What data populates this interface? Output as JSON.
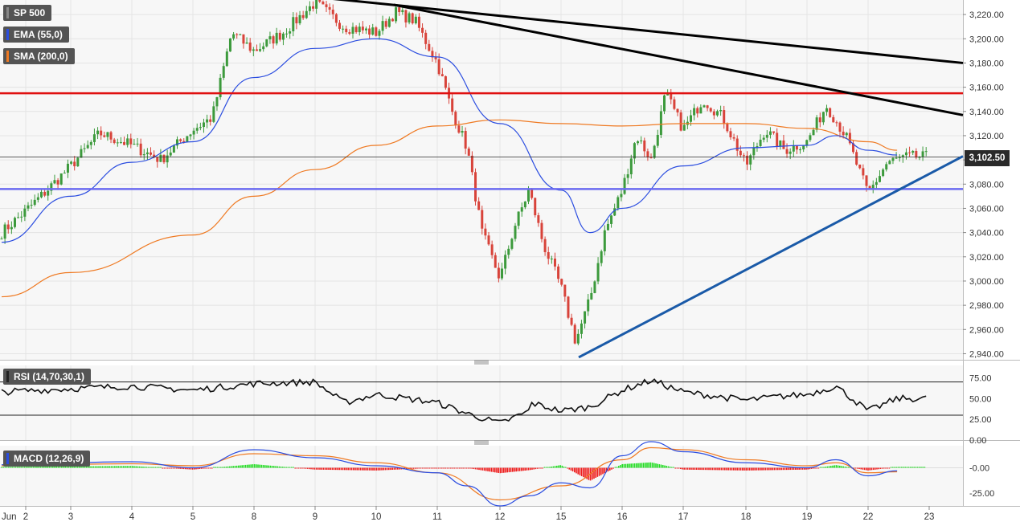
{
  "legend": {
    "symbol": "SP 500",
    "ema": "EMA (55,0)",
    "sma": "SMA (200,0)",
    "rsi": "RSI (14,70,30,1)",
    "macd": "MACD (12,26,9)"
  },
  "last_price_label": "3,102.50",
  "colors": {
    "bull": "#3c9a3c",
    "bear": "#d8433a",
    "ema": "#2b4de0",
    "sma": "#ef7a23",
    "resistance": "#e01010",
    "support": "#6a6af0",
    "trendline_up": "#1a5aa8",
    "trendline_down": "#000000",
    "macd_line": "#2b4de0",
    "signal_line": "#ef7a23",
    "hist_pos": "#22dd22",
    "hist_neg": "#ee1a1a"
  },
  "chart_data": [
    {
      "type": "candlestick",
      "title": "SP 500",
      "x_tick_labels": [
        "Jun",
        "2",
        "3",
        "4",
        "5",
        "8",
        "9",
        "10",
        "11",
        "12",
        "15",
        "16",
        "17",
        "18",
        "19",
        "22",
        "23"
      ],
      "y_tick_labels": [
        "3,220.00",
        "3,200.00",
        "3,180.00",
        "3,160.00",
        "3,140.00",
        "3,120.00",
        "3,100.00",
        "3,080.00",
        "3,060.00",
        "3,040.00",
        "3,020.00",
        "3,000.00",
        "2,980.00",
        "2,960.00",
        "2,940.00"
      ],
      "ylim": [
        2935,
        3232
      ],
      "last_price": 3102.5,
      "horizontal_lines": [
        {
          "name": "resistance",
          "y": 3155
        },
        {
          "name": "support",
          "y": 3076
        },
        {
          "name": "last",
          "y": 3102.5
        }
      ],
      "trendlines": [
        {
          "name": "upper-down-1",
          "from": {
            "x": "Jun 9",
            "y": 3233
          },
          "to": {
            "x": "Jun 23",
            "y": 3180
          }
        },
        {
          "name": "upper-down-2",
          "from": {
            "x": "Jun 10",
            "y": 3228
          },
          "to": {
            "x": "Jun 23",
            "y": 3137
          }
        },
        {
          "name": "rising-support",
          "from": {
            "x": "Jun 15",
            "y": 2937
          },
          "to": {
            "x": "Jun 23",
            "y": 3103
          }
        }
      ],
      "anchors": [
        {
          "x": "Jun 1",
          "y": 3040
        },
        {
          "x": "Jun 2",
          "y": 3058
        },
        {
          "x": "Jun 2",
          "y": 3075
        },
        {
          "x": "Jun 3",
          "y": 3095
        },
        {
          "x": "Jun 3",
          "y": 3122
        },
        {
          "x": "Jun 4",
          "y": 3112
        },
        {
          "x": "Jun 4",
          "y": 3100
        },
        {
          "x": "Jun 5",
          "y": 3125
        },
        {
          "x": "Jun 5",
          "y": 3135
        },
        {
          "x": "Jun 5",
          "y": 3205
        },
        {
          "x": "Jun 8",
          "y": 3190
        },
        {
          "x": "Jun 8",
          "y": 3205
        },
        {
          "x": "Jun 9",
          "y": 3230
        },
        {
          "x": "Jun 9",
          "y": 3210
        },
        {
          "x": "Jun 10",
          "y": 3205
        },
        {
          "x": "Jun 10",
          "y": 3222
        },
        {
          "x": "Jun 10",
          "y": 3215
        },
        {
          "x": "Jun 11",
          "y": 3180
        },
        {
          "x": "Jun 11",
          "y": 3140
        },
        {
          "x": "Jun 11",
          "y": 3110
        },
        {
          "x": "Jun 11",
          "y": 3040
        },
        {
          "x": "Jun 12",
          "y": 3002
        },
        {
          "x": "Jun 12",
          "y": 3045
        },
        {
          "x": "Jun 12",
          "y": 3075
        },
        {
          "x": "Jun 12",
          "y": 3030
        },
        {
          "x": "Jun 15",
          "y": 2995
        },
        {
          "x": "Jun 15",
          "y": 2950
        },
        {
          "x": "Jun 15",
          "y": 2985
        },
        {
          "x": "Jun 15",
          "y": 3040
        },
        {
          "x": "Jun 16",
          "y": 3075
        },
        {
          "x": "Jun 16",
          "y": 3120
        },
        {
          "x": "Jun 16",
          "y": 3100
        },
        {
          "x": "Jun 16",
          "y": 3155
        },
        {
          "x": "Jun 17",
          "y": 3125
        },
        {
          "x": "Jun 17",
          "y": 3150
        },
        {
          "x": "Jun 17",
          "y": 3135
        },
        {
          "x": "Jun 18",
          "y": 3095
        },
        {
          "x": "Jun 18",
          "y": 3125
        },
        {
          "x": "Jun 18",
          "y": 3108
        },
        {
          "x": "Jun 19",
          "y": 3115
        },
        {
          "x": "Jun 19",
          "y": 3145
        },
        {
          "x": "Jun 19",
          "y": 3120
        },
        {
          "x": "Jun 22",
          "y": 3072
        },
        {
          "x": "Jun 22",
          "y": 3098
        },
        {
          "x": "Jun 22",
          "y": 3102.5
        }
      ],
      "ema_55": [
        {
          "x": "Jun 1",
          "y": 3032
        },
        {
          "x": "Jun 3",
          "y": 3070
        },
        {
          "x": "Jun 4",
          "y": 3098
        },
        {
          "x": "Jun 5",
          "y": 3115
        },
        {
          "x": "Jun 8",
          "y": 3168
        },
        {
          "x": "Jun 9",
          "y": 3192
        },
        {
          "x": "Jun 10",
          "y": 3200
        },
        {
          "x": "Jun 11",
          "y": 3185
        },
        {
          "x": "Jun 12",
          "y": 3130
        },
        {
          "x": "Jun 15",
          "y": 3075
        },
        {
          "x": "Jun 15",
          "y": 3040
        },
        {
          "x": "Jun 16",
          "y": 3060
        },
        {
          "x": "Jun 17",
          "y": 3095
        },
        {
          "x": "Jun 18",
          "y": 3110
        },
        {
          "x": "Jun 19",
          "y": 3112
        },
        {
          "x": "Jun 19",
          "y": 3120
        },
        {
          "x": "Jun 22",
          "y": 3108
        },
        {
          "x": "Jun 22",
          "y": 3104
        }
      ],
      "sma_200": [
        {
          "x": "Jun 1",
          "y": 2987
        },
        {
          "x": "Jun 3",
          "y": 3007
        },
        {
          "x": "Jun 5",
          "y": 3038
        },
        {
          "x": "Jun 8",
          "y": 3070
        },
        {
          "x": "Jun 9",
          "y": 3092
        },
        {
          "x": "Jun 10",
          "y": 3112
        },
        {
          "x": "Jun 11",
          "y": 3128
        },
        {
          "x": "Jun 12",
          "y": 3133
        },
        {
          "x": "Jun 15",
          "y": 3130
        },
        {
          "x": "Jun 16",
          "y": 3128
        },
        {
          "x": "Jun 17",
          "y": 3130
        },
        {
          "x": "Jun 18",
          "y": 3130
        },
        {
          "x": "Jun 19",
          "y": 3126
        },
        {
          "x": "Jun 22",
          "y": 3115
        },
        {
          "x": "Jun 22",
          "y": 3108
        }
      ]
    },
    {
      "type": "line",
      "title": "RSI (14,70,30,1)",
      "y_tick_labels": [
        "75.00",
        "50.00",
        "25.00",
        "0.00"
      ],
      "ylim": [
        0,
        90
      ],
      "levels": [
        70,
        30
      ],
      "anchors": [
        {
          "x": "Jun 1",
          "y": 58
        },
        {
          "x": "Jun 3",
          "y": 62
        },
        {
          "x": "Jun 4",
          "y": 65
        },
        {
          "x": "Jun 5",
          "y": 60
        },
        {
          "x": "Jun 8",
          "y": 68
        },
        {
          "x": "Jun 9",
          "y": 70
        },
        {
          "x": "Jun 9",
          "y": 45
        },
        {
          "x": "Jun 10",
          "y": 55
        },
        {
          "x": "Jun 11",
          "y": 45
        },
        {
          "x": "Jun 11",
          "y": 32
        },
        {
          "x": "Jun 12",
          "y": 20
        },
        {
          "x": "Jun 12",
          "y": 35
        },
        {
          "x": "Jun 13",
          "y": 45
        },
        {
          "x": "Jun 15",
          "y": 35
        },
        {
          "x": "Jun 15",
          "y": 40
        },
        {
          "x": "Jun 16",
          "y": 60
        },
        {
          "x": "Jun 16",
          "y": 72
        },
        {
          "x": "Jun 17",
          "y": 58
        },
        {
          "x": "Jun 18",
          "y": 48
        },
        {
          "x": "Jun 18",
          "y": 52
        },
        {
          "x": "Jun 19",
          "y": 55
        },
        {
          "x": "Jun 19",
          "y": 65
        },
        {
          "x": "Jun 22",
          "y": 35
        },
        {
          "x": "Jun 22",
          "y": 50
        }
      ]
    },
    {
      "type": "line",
      "title": "MACD (12,26,9)",
      "y_tick_labels": [
        "-0.00",
        "-25.00"
      ],
      "ylim": [
        -38,
        22
      ],
      "macd_anchors": [
        {
          "x": "Jun 1",
          "y": 3
        },
        {
          "x": "Jun 4",
          "y": 6
        },
        {
          "x": "Jun 5",
          "y": 0
        },
        {
          "x": "Jun 8",
          "y": 18
        },
        {
          "x": "Jun 9",
          "y": 10
        },
        {
          "x": "Jun 10",
          "y": 2
        },
        {
          "x": "Jun 11",
          "y": -5
        },
        {
          "x": "Jun 11",
          "y": -18
        },
        {
          "x": "Jun 12",
          "y": -38
        },
        {
          "x": "Jun 12",
          "y": -28
        },
        {
          "x": "Jun 15",
          "y": -15
        },
        {
          "x": "Jun 15",
          "y": -20
        },
        {
          "x": "Jun 16",
          "y": 12
        },
        {
          "x": "Jun 16",
          "y": 26
        },
        {
          "x": "Jun 17",
          "y": 16
        },
        {
          "x": "Jun 18",
          "y": 5
        },
        {
          "x": "Jun 19",
          "y": 0
        },
        {
          "x": "Jun 19",
          "y": 8
        },
        {
          "x": "Jun 22",
          "y": -8
        },
        {
          "x": "Jun 22",
          "y": -3
        }
      ],
      "signal_anchors": [
        {
          "x": "Jun 1",
          "y": 2
        },
        {
          "x": "Jun 4",
          "y": 4
        },
        {
          "x": "Jun 5",
          "y": 2
        },
        {
          "x": "Jun 8",
          "y": 14
        },
        {
          "x": "Jun 9",
          "y": 12
        },
        {
          "x": "Jun 10",
          "y": 5
        },
        {
          "x": "Jun 11",
          "y": -5
        },
        {
          "x": "Jun 12",
          "y": -32
        },
        {
          "x": "Jun 15",
          "y": -18
        },
        {
          "x": "Jun 16",
          "y": 8
        },
        {
          "x": "Jun 16",
          "y": 20
        },
        {
          "x": "Jun 17",
          "y": 18
        },
        {
          "x": "Jun 18",
          "y": 8
        },
        {
          "x": "Jun 19",
          "y": 2
        },
        {
          "x": "Jun 19",
          "y": 5
        },
        {
          "x": "Jun 22",
          "y": -5
        },
        {
          "x": "Jun 22",
          "y": -4
        }
      ]
    }
  ]
}
